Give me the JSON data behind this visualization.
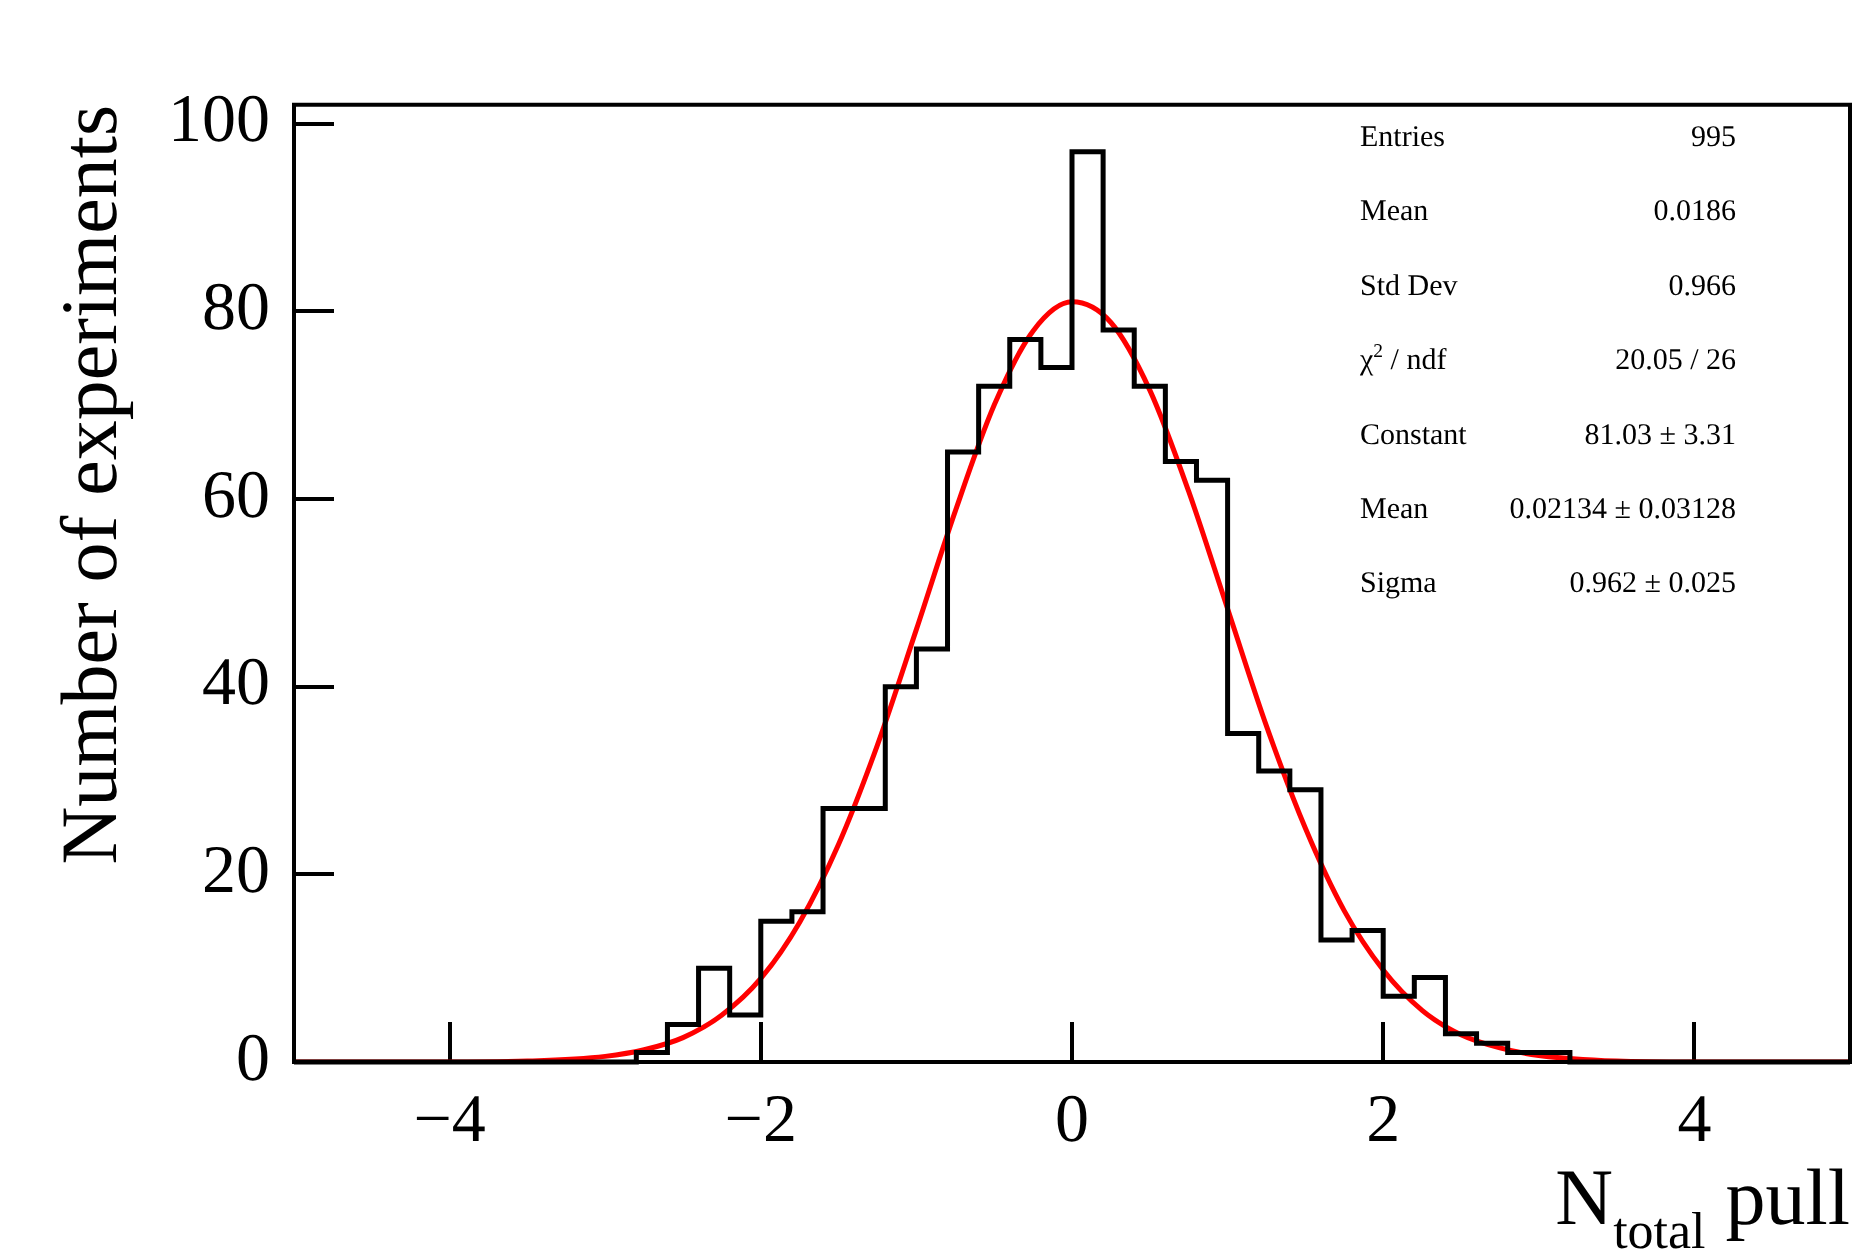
{
  "chart_data": {
    "type": "histogram",
    "xlabel": "N$_{total}$ pull",
    "ylabel": "Number of experiments",
    "bins": [
      -5,
      -4.8,
      -4.6,
      -4.4,
      -4.2,
      -4,
      -3.8,
      -3.6,
      -3.4,
      -3.2,
      -3,
      -2.8,
      -2.6,
      -2.4,
      -2.2,
      -2,
      -1.8,
      -1.6,
      -1.4,
      -1.2,
      -1,
      -0.8,
      -0.6,
      -0.4,
      -0.2,
      0,
      0.2,
      0.4,
      0.6,
      0.8,
      1,
      1.2,
      1.4,
      1.6,
      1.8,
      2,
      2.2,
      2.4,
      2.6,
      2.8,
      3,
      3.2,
      3.4,
      3.6,
      3.8,
      4,
      4.2,
      4.4,
      4.6,
      4.8,
      5
    ],
    "series": [
      {
        "type": "histogram",
        "color": "#000000",
        "values": [
          0,
          0,
          0,
          0,
          0,
          0,
          0,
          0,
          0,
          0,
          0,
          1,
          4,
          10,
          5,
          15,
          16,
          27,
          27,
          40,
          44,
          65,
          72,
          77,
          74,
          97,
          78,
          72,
          64,
          62,
          35,
          31,
          29,
          13,
          14,
          7,
          9,
          3,
          2,
          1,
          1,
          0,
          0,
          0,
          0,
          0,
          0,
          0,
          0,
          0
        ]
      },
      {
        "type": "line",
        "color": "#ff0000",
        "x": [
          -5,
          -4,
          -3.5,
          -3,
          -2.75,
          -2.5,
          -2.25,
          -2,
          -1.75,
          -1.5,
          -1.25,
          -1,
          -0.75,
          -0.5,
          -0.25,
          0,
          0.25,
          0.5,
          0.75,
          1,
          1.25,
          1.5,
          1.75,
          2,
          2.25,
          2.5,
          2.75,
          3,
          3.5,
          4,
          5
        ],
        "values": [
          0,
          0,
          0.1,
          0.6,
          1.3,
          2.6,
          5,
          8.9,
          14.9,
          23.2,
          33.8,
          46.1,
          58.7,
          70,
          77.9,
          81,
          78.8,
          71.6,
          60.8,
          48.3,
          35.8,
          24.9,
          16.1,
          9.8,
          5.5,
          2.9,
          1.5,
          0.7,
          0.1,
          0,
          0
        ]
      }
    ],
    "xlim": [
      -5,
      5
    ],
    "ylim": [
      0,
      102
    ],
    "xticks": [
      -4,
      -2,
      0,
      2,
      4
    ],
    "yticks": [
      0,
      20,
      40,
      60,
      80,
      100
    ],
    "legend": false,
    "grid": false,
    "annotations": [
      "Entries",
      "995",
      "Mean",
      "0.0186",
      "Std Dev",
      "0.966",
      "χ$^{2}$ / ndf",
      "20.05 / 26",
      "Constant",
      "81.03 ± 3.31",
      "Mean",
      "0.02134 ± 0.03128",
      "Sigma",
      "0.962 ± 0.025"
    ]
  }
}
